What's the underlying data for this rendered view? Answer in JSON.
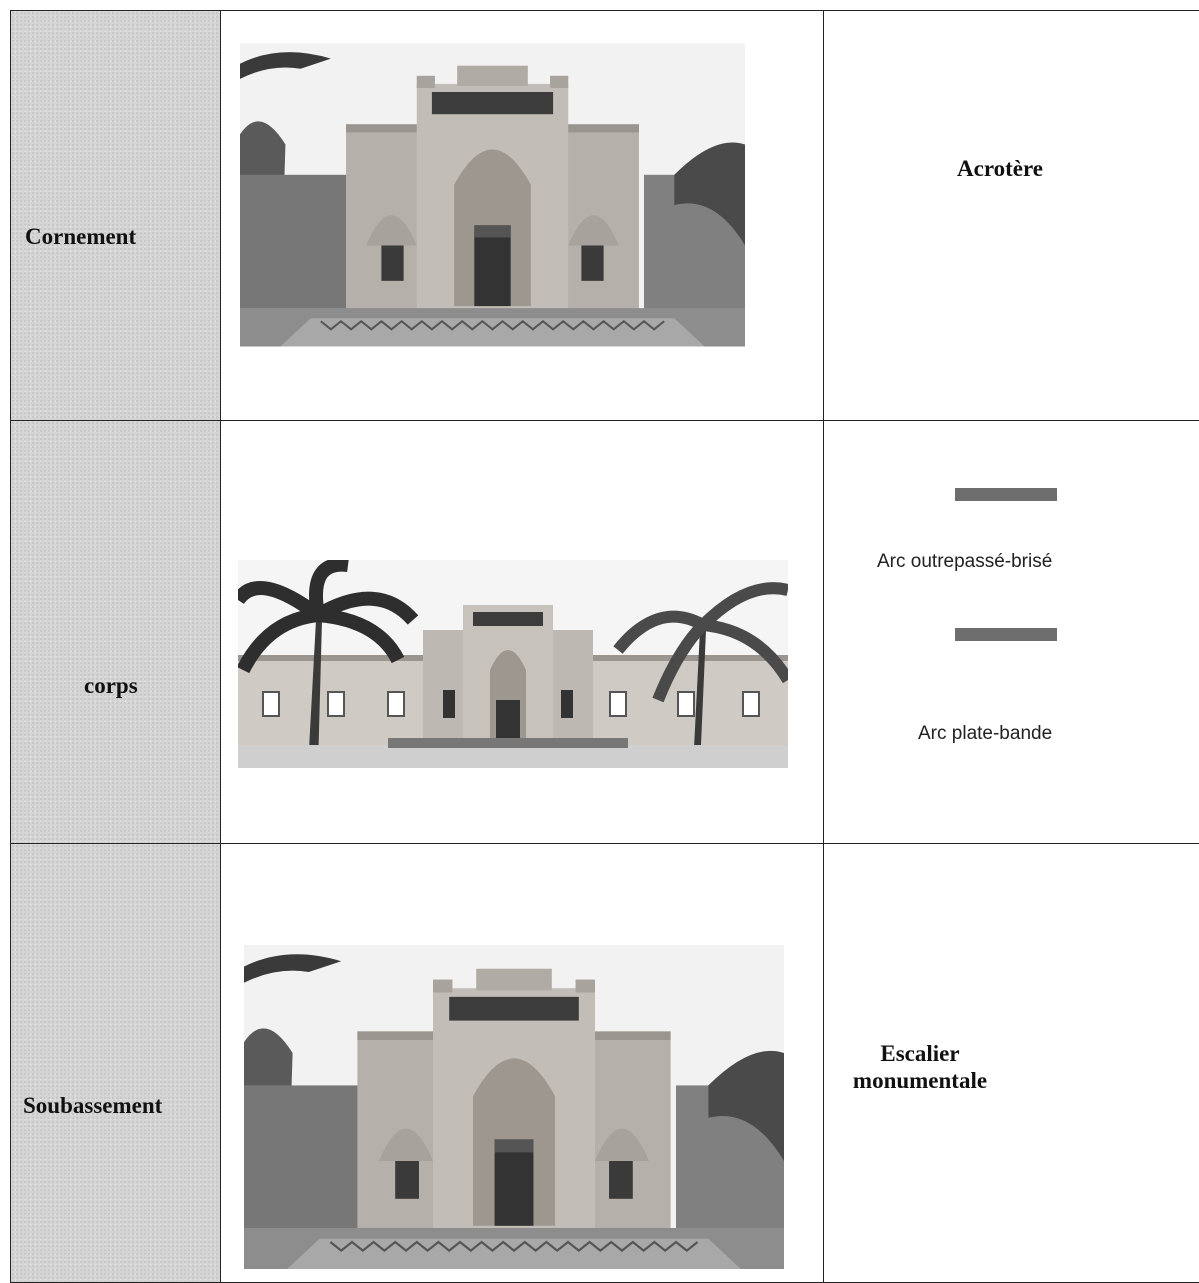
{
  "table": {
    "rows": [
      {
        "part": "Cornement",
        "notes": [
          "Acrotère"
        ]
      },
      {
        "part": "corps",
        "notes": [
          "Arc outrepassé-brisé",
          "Arc plate-bande"
        ]
      },
      {
        "part": "Soubassement",
        "notes": [
          "Escalier monumentale"
        ]
      }
    ]
  }
}
